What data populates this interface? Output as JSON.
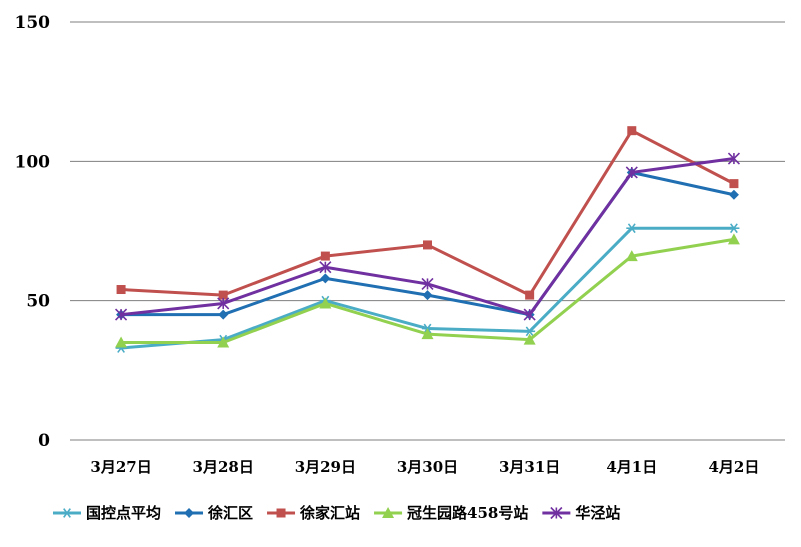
{
  "chart_data": {
    "type": "line",
    "title": "",
    "xlabel": "",
    "ylabel": "",
    "categories": [
      "3月27日",
      "3月28日",
      "3月29日",
      "3月30日",
      "3月31日",
      "4月1日",
      "4月2日"
    ],
    "ylim": [
      0,
      150
    ],
    "yticks": [
      0,
      50,
      100,
      150
    ],
    "grid": true,
    "legend_position": "bottom",
    "series": [
      {
        "name": "国控点平均",
        "color": "#4bacc6",
        "marker": "asterisk",
        "values": [
          33,
          36,
          50,
          40,
          39,
          76,
          76
        ]
      },
      {
        "name": "徐汇区",
        "color": "#1f6fb2",
        "marker": "diamond",
        "values": [
          45,
          45,
          58,
          52,
          45,
          96,
          88
        ]
      },
      {
        "name": "徐家汇站",
        "color": "#c0504d",
        "marker": "square",
        "values": [
          54,
          52,
          66,
          70,
          52,
          111,
          92
        ]
      },
      {
        "name": "冠生园路458号站",
        "color": "#92d050",
        "marker": "triangle",
        "values": [
          35,
          35,
          49,
          38,
          36,
          66,
          72
        ]
      },
      {
        "name": "华泾站",
        "color": "#7030a0",
        "marker": "star",
        "values": [
          45,
          49,
          62,
          56,
          45,
          96,
          101
        ]
      }
    ]
  }
}
